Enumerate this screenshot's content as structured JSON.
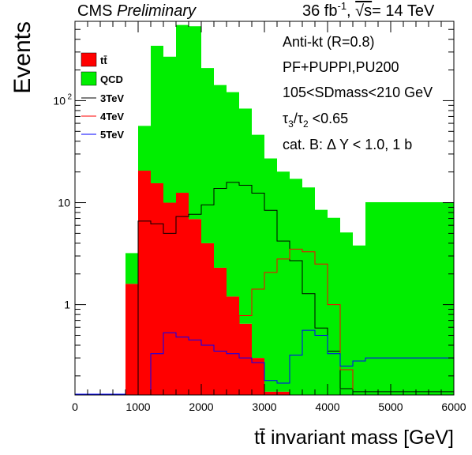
{
  "header": {
    "cms": "CMS",
    "preliminary": "Preliminary",
    "lumi_prefix": "36 fb",
    "lumi_sup": "-1",
    "lumi_sep": ",",
    "sqrt": "√s",
    "energy": "= 14 TeV"
  },
  "annotations": {
    "algo": "Anti-kt (R=0.8)",
    "reco": "PF+PUPPI,PU200",
    "sdmass": "105<SDmass<210 GeV",
    "tau_tau1": "τ",
    "tau_sub1": "3",
    "tau_slash": "/τ",
    "tau_sub2": "2",
    "tau_cut": " <0.65",
    "category": "cat. B: Δ Y < 1.0, 1 b"
  },
  "legend": {
    "ttbar": "tt̄",
    "qcd": "QCD",
    "z3": "3TeV",
    "z4": "4TeV",
    "z5": "5TeV"
  },
  "chart_data": {
    "type": "area",
    "xlabel": "tt̄ invariant mass [GeV]",
    "ylabel": "Events",
    "xlim": [
      0,
      6000
    ],
    "ylim": [
      0.13,
      600
    ],
    "yscale": "log",
    "xticks": [
      0,
      1000,
      2000,
      3000,
      4000,
      5000,
      6000
    ],
    "yticks": [
      {
        "v": 1,
        "label": "1"
      },
      {
        "v": 10,
        "label": "10"
      },
      {
        "v": 100,
        "label": "10",
        "sup": "2"
      }
    ],
    "bin_edges": [
      800,
      1000,
      1200,
      1400,
      1600,
      1800,
      2000,
      2200,
      2400,
      2600,
      2800,
      3000,
      3200,
      3400,
      3600,
      3800,
      4000,
      4200,
      4400,
      4600,
      6000
    ],
    "stack": [
      {
        "name": "tt̄",
        "color": "#ff0000",
        "values": [
          1.6,
          20.6,
          15.5,
          10.0,
          12.5,
          6.9,
          4.0,
          2.3,
          1.2,
          0.65,
          0.3,
          0.14,
          0.14,
          0.12,
          0.1,
          0.1,
          0.1,
          0.1,
          0.1,
          0.1
        ]
      },
      {
        "name": "QCD",
        "color": "#00ee00",
        "values": [
          1.6,
          36,
          330,
          260,
          540,
          530,
          205,
          140,
          120,
          83,
          46,
          27,
          20,
          17,
          14,
          8.4,
          7.0,
          5.0,
          3.7,
          10.0
        ]
      }
    ],
    "lines": [
      {
        "name": "3TeV",
        "color": "#000000",
        "values": [
          0.13,
          6.6,
          6.2,
          5.0,
          7.3,
          7.7,
          9.5,
          13.8,
          15.8,
          14.8,
          12.4,
          8.4,
          4.2,
          2.7,
          1.28,
          0.59,
          0.35,
          0.15,
          0.14,
          0.14
        ]
      },
      {
        "name": "4TeV",
        "color": "#ff0000",
        "values": [
          0.13,
          0.13,
          0.13,
          0.13,
          0.13,
          0.13,
          0.14,
          0.22,
          0.42,
          0.78,
          1.42,
          2.07,
          2.8,
          3.5,
          3.3,
          2.5,
          1.0,
          0.23,
          0.13,
          0.13
        ]
      },
      {
        "name": "5TeV",
        "color": "#0000ff",
        "values": [
          0.13,
          0.13,
          0.33,
          0.53,
          0.48,
          0.45,
          0.4,
          0.35,
          0.33,
          0.3,
          0.27,
          0.18,
          0.17,
          0.32,
          0.56,
          0.5,
          0.33,
          0.25,
          0.28,
          0.3
        ]
      }
    ]
  }
}
